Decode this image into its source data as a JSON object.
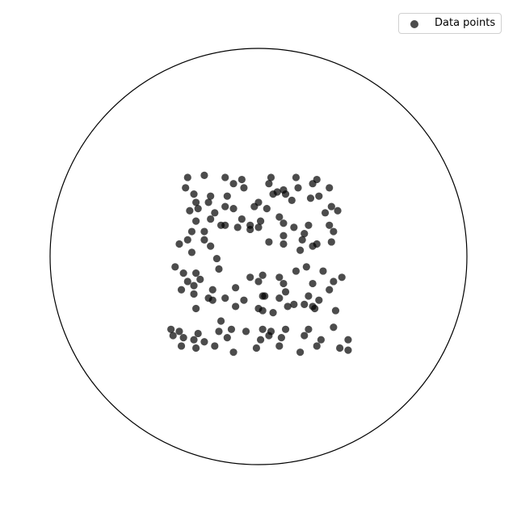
{
  "chart_data": {
    "type": "scatter",
    "title": "",
    "xlabel": "",
    "ylabel": "",
    "xlim": [
      -1,
      1
    ],
    "ylim": [
      -1,
      1
    ],
    "grid": false,
    "axes_visible": false,
    "boundary": "unit-circle",
    "legend_position": "top-right",
    "marker_color": "#000000",
    "marker_alpha": 0.7,
    "series": [
      {
        "name": "Data points",
        "x": [
          -0.34,
          -0.26,
          -0.16,
          -0.08,
          0.06,
          0.18,
          0.28,
          0.34,
          -0.35,
          -0.31,
          -0.23,
          -0.15,
          -0.12,
          -0.07,
          0.05,
          0.09,
          0.12,
          0.19,
          0.26,
          -0.3,
          -0.24,
          -0.16,
          0.0,
          0.07,
          0.13,
          0.25,
          0.29,
          0.35,
          -0.33,
          -0.29,
          -0.21,
          -0.12,
          -0.02,
          0.04,
          0.16,
          0.32,
          0.38,
          -0.3,
          -0.23,
          -0.18,
          -0.08,
          -0.04,
          0.01,
          0.1,
          0.24,
          0.36,
          -0.32,
          -0.26,
          -0.16,
          -0.1,
          0.12,
          0.17,
          0.22,
          0.34,
          -0.38,
          -0.34,
          -0.26,
          -0.04,
          0.0,
          0.12,
          0.21,
          0.28,
          -0.32,
          -0.23,
          0.05,
          0.12,
          0.2,
          0.26,
          0.35,
          -0.4,
          -0.36,
          -0.3,
          -0.2,
          -0.04,
          0.02,
          0.1,
          0.18,
          0.23,
          0.31,
          0.4,
          -0.34,
          -0.28,
          -0.19,
          0.0,
          0.12,
          0.26,
          0.36,
          -0.37,
          -0.31,
          -0.22,
          -0.11,
          0.02,
          0.13,
          0.24,
          0.34,
          -0.31,
          -0.24,
          -0.16,
          -0.07,
          0.03,
          0.1,
          0.17,
          0.22,
          0.29,
          -0.3,
          -0.22,
          -0.11,
          0.07,
          0.14,
          0.26,
          0.37,
          -0.18,
          0.0,
          0.02,
          0.27,
          -0.42,
          -0.38,
          -0.29,
          -0.19,
          -0.13,
          -0.06,
          0.02,
          0.06,
          0.13,
          0.24,
          0.36,
          -0.41,
          -0.36,
          -0.31,
          -0.26,
          -0.15,
          0.01,
          0.05,
          0.11,
          0.22,
          0.3,
          0.43,
          -0.37,
          -0.3,
          -0.21,
          -0.12,
          -0.01,
          0.1,
          0.2,
          0.28,
          0.39,
          0.43
        ],
        "y": [
          0.38,
          0.39,
          0.38,
          0.37,
          0.38,
          0.38,
          0.37,
          0.33,
          0.33,
          0.3,
          0.29,
          0.29,
          0.35,
          0.33,
          0.35,
          0.31,
          0.32,
          0.33,
          0.35,
          0.26,
          0.26,
          0.24,
          0.26,
          0.3,
          0.3,
          0.28,
          0.29,
          0.24,
          0.22,
          0.23,
          0.21,
          0.23,
          0.24,
          0.23,
          0.27,
          0.21,
          0.22,
          0.17,
          0.18,
          0.15,
          0.18,
          0.15,
          0.17,
          0.19,
          0.15,
          0.12,
          0.12,
          0.12,
          0.15,
          0.14,
          0.16,
          0.14,
          0.11,
          0.15,
          0.06,
          0.08,
          0.08,
          0.13,
          0.14,
          0.1,
          0.08,
          0.06,
          0.02,
          0.05,
          0.07,
          0.06,
          0.03,
          0.05,
          0.07,
          -0.05,
          -0.08,
          -0.08,
          -0.01,
          -0.1,
          -0.09,
          -0.1,
          -0.07,
          -0.05,
          -0.07,
          -0.1,
          -0.12,
          -0.11,
          -0.06,
          -0.12,
          -0.13,
          -0.13,
          -0.12,
          -0.16,
          -0.14,
          -0.16,
          -0.15,
          -0.19,
          -0.17,
          -0.19,
          -0.16,
          -0.18,
          -0.2,
          -0.2,
          -0.21,
          -0.19,
          -0.2,
          -0.23,
          -0.23,
          -0.21,
          -0.25,
          -0.21,
          -0.24,
          -0.27,
          -0.24,
          -0.24,
          -0.26,
          -0.31,
          -0.25,
          -0.26,
          -0.25,
          -0.35,
          -0.36,
          -0.37,
          -0.36,
          -0.35,
          -0.36,
          -0.35,
          -0.36,
          -0.35,
          -0.35,
          -0.34,
          -0.38,
          -0.39,
          -0.4,
          -0.41,
          -0.39,
          -0.4,
          -0.38,
          -0.39,
          -0.38,
          -0.4,
          -0.4,
          -0.43,
          -0.44,
          -0.43,
          -0.46,
          -0.44,
          -0.43,
          -0.46,
          -0.43,
          -0.44,
          -0.45
        ]
      }
    ]
  }
}
